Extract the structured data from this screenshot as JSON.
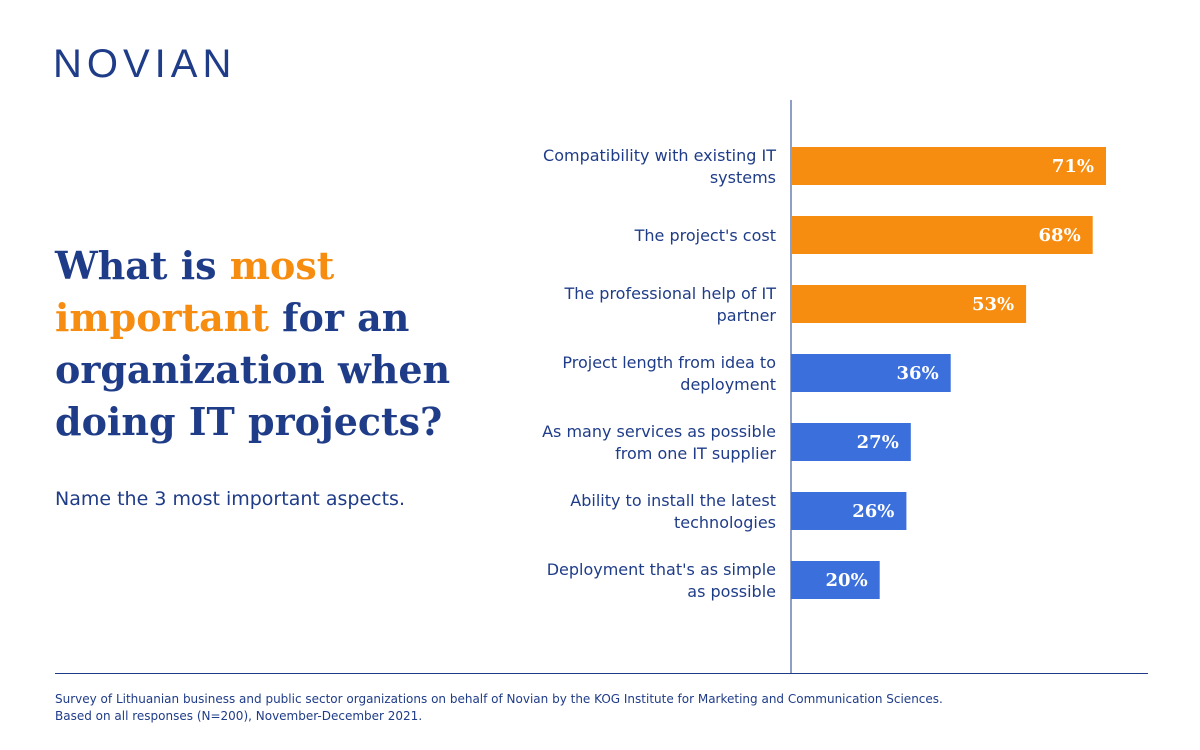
{
  "logo": "NOVIAN",
  "headline": {
    "part1": "What is ",
    "accent": "most important",
    "part2": " for an organization when doing IT projects?"
  },
  "subtitle": "Name the 3 most important aspects.",
  "colors": {
    "primary": "#1f3c88",
    "highlight": "#f78d10",
    "bar_blue": "#3a6fdc"
  },
  "chart_data": {
    "type": "bar",
    "orientation": "horizontal",
    "xlim": [
      0,
      100
    ],
    "categories": [
      [
        "Compatibility with existing IT",
        "systems"
      ],
      [
        "The project's cost"
      ],
      [
        "The professional help of IT",
        "partner"
      ],
      [
        "Project length from idea to",
        "deployment"
      ],
      [
        "As many services as possible",
        "from one IT supplier"
      ],
      [
        "Ability to install the latest",
        "technologies"
      ],
      [
        "Deployment that's as simple",
        "as possible"
      ]
    ],
    "values": [
      71,
      68,
      53,
      36,
      27,
      26,
      20
    ],
    "value_labels": [
      "71%",
      "68%",
      "53%",
      "36%",
      "27%",
      "26%",
      "20%"
    ],
    "bar_colors": [
      "highlight",
      "highlight",
      "highlight",
      "bar_blue",
      "bar_blue",
      "bar_blue",
      "bar_blue"
    ]
  },
  "footer": {
    "line1": "Survey of Lithuanian business and public sector organizations on behalf of Novian by the KOG Institute for Marketing and Communication Sciences.",
    "line2": "Based on all responses (N=200), November-December 2021."
  }
}
